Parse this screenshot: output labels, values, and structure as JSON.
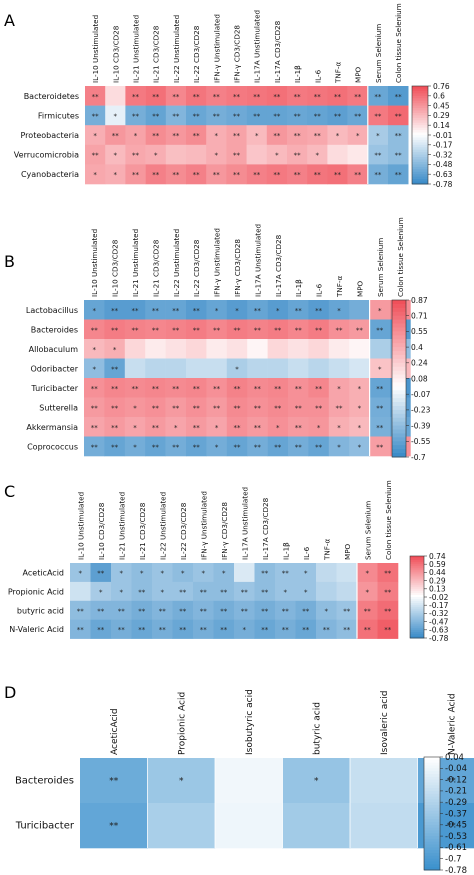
{
  "figure": {
    "panel_letters": [
      "A",
      "B",
      "C",
      "D"
    ]
  },
  "chart_data": [
    {
      "type": "heatmap",
      "panel": "A",
      "columns": [
        "IL-10  Unstimulated",
        "IL-10 CD3/CD28",
        "IL-21 Unstimulated",
        "IL-21 CD3/CD28",
        "IL-22 Unstimulated",
        "IL-22 CD3/CD28",
        "IFN-γ Unstimulated",
        "IFN-γ CD3/CD28",
        "IL-17A Unstimulated",
        "IL-17A CD3/CD28",
        "IL-1β",
        "IL-6",
        "TNF-α",
        "MPO",
        "Serum Selenium",
        "Colon tissue Selenium"
      ],
      "rows": [
        "Bacteroidetes",
        "Firmicutes",
        "Proteobacteria",
        "Verrucomicrobia",
        "Cyanobacteria"
      ],
      "values": [
        [
          0.55,
          0.15,
          0.58,
          0.62,
          0.52,
          0.6,
          0.55,
          0.58,
          0.6,
          0.62,
          0.58,
          0.6,
          0.62,
          0.58,
          -0.6,
          -0.68
        ],
        [
          -0.55,
          -0.1,
          -0.55,
          -0.62,
          -0.5,
          -0.6,
          -0.55,
          -0.58,
          -0.62,
          -0.62,
          -0.6,
          -0.62,
          -0.65,
          -0.6,
          0.58,
          0.65
        ],
        [
          0.35,
          0.45,
          0.4,
          0.5,
          0.45,
          0.5,
          0.35,
          0.4,
          0.3,
          0.45,
          0.4,
          0.38,
          0.3,
          0.35,
          -0.35,
          -0.45
        ],
        [
          0.4,
          0.3,
          0.38,
          0.35,
          0.28,
          0.3,
          0.35,
          0.4,
          0.25,
          0.3,
          0.35,
          0.3,
          0.15,
          0.1,
          -0.4,
          -0.45
        ],
        [
          0.38,
          0.35,
          0.45,
          0.55,
          0.5,
          0.55,
          0.45,
          0.5,
          0.55,
          0.58,
          0.55,
          0.6,
          0.62,
          0.55,
          -0.55,
          -0.62
        ]
      ],
      "stars": [
        [
          "**",
          "",
          "**",
          "**",
          "**",
          "**",
          "**",
          "**",
          "**",
          "**",
          "**",
          "**",
          "**",
          "**",
          "**",
          "**"
        ],
        [
          "**",
          "*",
          "**",
          "**",
          "**",
          "**",
          "**",
          "**",
          "**",
          "**",
          "**",
          "**",
          "**",
          "**",
          "**",
          "**"
        ],
        [
          "*",
          "**",
          "*",
          "**",
          "**",
          "**",
          "*",
          "**",
          "*",
          "**",
          "**",
          "**",
          "*",
          "*",
          "*",
          "**"
        ],
        [
          "**",
          "*",
          "**",
          "*",
          "",
          "",
          "*",
          "**",
          "",
          "*",
          "**",
          "*",
          "",
          "",
          "**",
          "**"
        ],
        [
          "*",
          "*",
          "**",
          "**",
          "**",
          "**",
          "**",
          "**",
          "**",
          "**",
          "**",
          "**",
          "**",
          "**",
          "**",
          "**"
        ]
      ],
      "colorbar_ticks": [
        "0.76",
        "0.6",
        "0.45",
        "0.29",
        "0.14",
        "-0.01",
        "-0.17",
        "-0.32",
        "-0.48",
        "-0.63",
        "-0.78"
      ],
      "vmin": -0.78,
      "vmax": 0.76
    },
    {
      "type": "heatmap",
      "panel": "B",
      "columns": [
        "IL-10  Unstimulated",
        "IL-10 CD3/CD28",
        "IL-21 Unstimulated",
        "IL-21 CD3/CD28",
        "IL-22 Unstimulated",
        "IL-22 CD3/CD28",
        "IFN-γ Unstimulated",
        "IFN-γ CD3/CD28",
        "IL-17A Unstimulated",
        "IL-17A CD3/CD28",
        "IL-1β",
        "IL-6",
        "TNF-α",
        "MPO",
        "Serum Selenium",
        "Colon tissue Selenium"
      ],
      "rows": [
        "Lactobacillus",
        "Bacteroides",
        "Allobaculum",
        "Odoribacter",
        "Turicibacter",
        "Sutterella",
        "Akkermansia",
        "Coprococcus"
      ],
      "values": [
        [
          -0.55,
          -0.6,
          -0.6,
          -0.55,
          -0.55,
          -0.6,
          -0.55,
          -0.6,
          -0.55,
          -0.6,
          -0.55,
          -0.6,
          -0.55,
          -0.5,
          0.5,
          0.58
        ],
        [
          0.6,
          0.65,
          0.62,
          0.6,
          0.62,
          0.65,
          0.6,
          0.65,
          0.62,
          0.65,
          0.6,
          0.65,
          0.55,
          0.5,
          -0.55,
          -0.62
        ],
        [
          0.35,
          0.4,
          0.2,
          0.1,
          0.15,
          0.2,
          0.1,
          0.15,
          0.05,
          0.2,
          0.15,
          0.2,
          0.1,
          0.05,
          -0.3,
          -0.4
        ],
        [
          -0.4,
          -0.55,
          -0.2,
          -0.25,
          -0.25,
          -0.2,
          -0.2,
          -0.3,
          -0.25,
          -0.25,
          -0.2,
          -0.25,
          -0.2,
          -0.15,
          0.3,
          0.35
        ],
        [
          0.55,
          0.6,
          0.58,
          0.6,
          0.58,
          0.6,
          0.55,
          0.62,
          0.58,
          0.6,
          0.55,
          0.6,
          0.45,
          0.4,
          -0.55,
          -0.65
        ],
        [
          0.5,
          0.55,
          0.52,
          0.55,
          0.5,
          0.55,
          0.5,
          0.58,
          0.55,
          0.58,
          0.55,
          0.55,
          0.45,
          0.4,
          -0.5,
          -0.6
        ],
        [
          0.45,
          0.5,
          0.45,
          0.5,
          0.45,
          0.5,
          0.45,
          0.55,
          0.5,
          0.55,
          0.5,
          0.52,
          0.4,
          0.35,
          -0.48,
          -0.55
        ],
        [
          -0.5,
          -0.55,
          -0.5,
          -0.55,
          -0.5,
          -0.55,
          -0.5,
          -0.55,
          -0.5,
          -0.55,
          -0.5,
          -0.55,
          -0.45,
          -0.4,
          0.48,
          0.55
        ]
      ],
      "stars": [
        [
          "*",
          "**",
          "**",
          "**",
          "**",
          "**",
          "*",
          "*",
          "**",
          "*",
          "**",
          "**",
          "*",
          "",
          "*",
          "**"
        ],
        [
          "**",
          "**",
          "**",
          "**",
          "**",
          "**",
          "**",
          "**",
          "**",
          "**",
          "**",
          "**",
          "**",
          "**",
          "**",
          "**"
        ],
        [
          "*",
          "*",
          "",
          "",
          "",
          "",
          "",
          "",
          "",
          "",
          "",
          "",
          "",
          "",
          "",
          ""
        ],
        [
          "*",
          "**",
          "",
          "",
          "",
          "",
          "",
          "*",
          "",
          "",
          "",
          "",
          "",
          "",
          "*",
          "*"
        ],
        [
          "**",
          "**",
          "**",
          "**",
          "**",
          "**",
          "**",
          "**",
          "**",
          "**",
          "**",
          "**",
          "*",
          "*",
          "**",
          "**"
        ],
        [
          "**",
          "**",
          "*",
          "**",
          "**",
          "**",
          "**",
          "**",
          "**",
          "**",
          "**",
          "**",
          "**",
          "*",
          "**",
          "**"
        ],
        [
          "**",
          "**",
          "*",
          "**",
          "*",
          "**",
          "*",
          "**",
          "**",
          "*",
          "**",
          "*",
          "*",
          "*",
          "**",
          "**"
        ],
        [
          "**",
          "**",
          "*",
          "**",
          "**",
          "**",
          "*",
          "**",
          "**",
          "**",
          "**",
          "**",
          "*",
          "*",
          "**",
          "**"
        ]
      ],
      "colorbar_ticks": [
        "0.87",
        "0.71",
        "0.55",
        "0.4",
        "0.24",
        "0.08",
        "-0.07",
        "-0.23",
        "-0.39",
        "-0.55",
        "-0.7"
      ],
      "vmin": -0.7,
      "vmax": 0.87
    },
    {
      "type": "heatmap",
      "panel": "C",
      "columns": [
        "IL-10  Unstimulated",
        "IL-10 CD3/CD28",
        "IL-21 Unstimulated",
        "IL-21 CD3/CD28",
        "IL-22 Unstimulated",
        "IL-22 CD3/CD28",
        "IFN-γ Unstimulated",
        "IFN-γ CD3/CD28",
        "IL-17A Unstimulated",
        "IL-17A CD3/CD28",
        "IL-1β",
        "IL-6",
        "TNF-α",
        "MPO",
        "Serum Selenium",
        "Colon tissue Selenium"
      ],
      "rows": [
        "AceticAcid",
        "Propionic Acid",
        "butyric acid",
        "N-Valeric Acid"
      ],
      "values": [
        [
          -0.4,
          -0.65,
          -0.4,
          -0.45,
          -0.4,
          -0.45,
          -0.4,
          -0.45,
          -0.15,
          -0.45,
          -0.4,
          -0.4,
          -0.25,
          -0.2,
          0.5,
          0.6
        ],
        [
          -0.2,
          -0.35,
          -0.4,
          -0.45,
          -0.4,
          -0.4,
          -0.45,
          -0.45,
          -0.4,
          -0.45,
          -0.4,
          -0.4,
          -0.3,
          -0.25,
          0.45,
          0.55
        ],
        [
          -0.45,
          -0.5,
          -0.5,
          -0.55,
          -0.5,
          -0.55,
          -0.5,
          -0.55,
          -0.5,
          -0.55,
          -0.5,
          -0.55,
          -0.45,
          -0.4,
          0.55,
          0.62
        ],
        [
          -0.5,
          -0.6,
          -0.55,
          -0.6,
          -0.55,
          -0.6,
          -0.55,
          -0.6,
          -0.55,
          -0.6,
          -0.55,
          -0.6,
          -0.5,
          -0.45,
          0.6,
          0.68
        ]
      ],
      "stars": [
        [
          "*",
          "**",
          "*",
          "*",
          "*",
          "*",
          "*",
          "*",
          "",
          "**",
          "**",
          "*",
          "",
          "",
          "*",
          "**"
        ],
        [
          "",
          "*",
          "*",
          "**",
          "*",
          "**",
          "**",
          "**",
          "**",
          "**",
          "*",
          "*",
          "",
          "",
          "*",
          "**"
        ],
        [
          "**",
          "**",
          "**",
          "**",
          "**",
          "**",
          "**",
          "**",
          "**",
          "**",
          "**",
          "**",
          "*",
          "**",
          "**",
          "**"
        ],
        [
          "**",
          "**",
          "**",
          "**",
          "**",
          "**",
          "**",
          "**",
          "*",
          "**",
          "**",
          "**",
          "**",
          "**",
          "**",
          "**"
        ]
      ],
      "colorbar_ticks": [
        "0.74",
        "0.59",
        "0.44",
        "0.29",
        "0.13",
        "-0.02",
        "-0.17",
        "-0.32",
        "-0.47",
        "-0.63",
        "-0.78"
      ],
      "vmin": -0.78,
      "vmax": 0.74
    },
    {
      "type": "heatmap",
      "panel": "D",
      "columns": [
        "AceticAcid",
        "Propionic Acid",
        "Isobutyric acid",
        "butyric acid",
        "Isovaleric acid",
        "N-Valeric Acid"
      ],
      "rows": [
        "Bacteroides",
        "Turicibacter"
      ],
      "values": [
        [
          -0.58,
          -0.38,
          -0.02,
          -0.4,
          -0.2,
          -0.62
        ],
        [
          -0.62,
          -0.32,
          -0.03,
          -0.35,
          -0.22,
          -0.72
        ]
      ],
      "stars": [
        [
          "**",
          "*",
          "",
          "*",
          "",
          "**"
        ],
        [
          "**",
          "",
          "",
          "",
          "",
          "**"
        ]
      ],
      "colorbar_ticks": [
        "0.04",
        "-0.04",
        "-0.12",
        "-0.21",
        "-0.29",
        "-0.37",
        "-0.45",
        "-0.53",
        "-0.61",
        "-0.7",
        "-0.78"
      ],
      "vmin": -0.78,
      "vmax": 0.04,
      "palette": "blues"
    }
  ]
}
